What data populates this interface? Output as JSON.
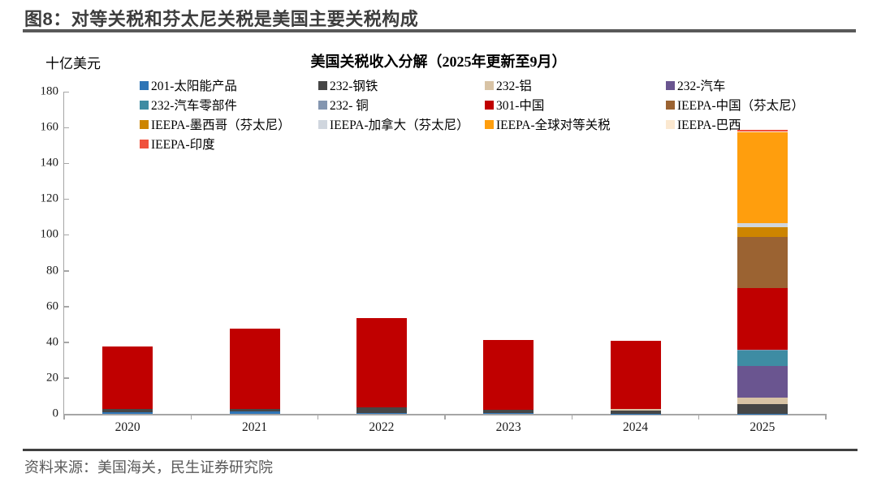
{
  "page": {
    "figure_title": "图8：对等关税和芬太尼关税是美国主要关税构成",
    "source_note": "资料来源：美国海关，民生证券研究院"
  },
  "chart_data": {
    "type": "bar",
    "stacked": true,
    "title": "美国关税收入分解（2025年更新至9月）",
    "ylabel": "十亿美元",
    "xlabel": "",
    "categories": [
      "2020",
      "2021",
      "2022",
      "2023",
      "2024",
      "2025"
    ],
    "ylim": [
      0,
      180
    ],
    "ytick_step": 20,
    "grid": false,
    "legend_position": "top",
    "series": [
      {
        "name": "201-太阳能产品",
        "color": "#2E75B6",
        "values": [
          1.0,
          1.2,
          0.5,
          0.3,
          0.2,
          0.2
        ]
      },
      {
        "name": "232-钢铁",
        "color": "#464646",
        "values": [
          1.7,
          1.6,
          3.0,
          2.0,
          1.8,
          5.2
        ]
      },
      {
        "name": "232-铝",
        "color": "#D8C3A5",
        "values": [
          0,
          0,
          0,
          0,
          0.6,
          3.6
        ]
      },
      {
        "name": "232-汽车",
        "color": "#6A5590",
        "values": [
          0,
          0,
          0,
          0,
          0,
          17.8
        ]
      },
      {
        "name": "232-汽车零部件",
        "color": "#3E8CA3",
        "values": [
          0,
          0,
          0,
          0,
          0,
          8.5
        ]
      },
      {
        "name": "232- 铜",
        "color": "#8496B0",
        "values": [
          0,
          0,
          0,
          0,
          0,
          0.4
        ]
      },
      {
        "name": "301-中国",
        "color": "#C00000",
        "values": [
          34.9,
          44.9,
          50.0,
          39.0,
          38.2,
          34.6
        ]
      },
      {
        "name": "IEEPA-中国（芬太尼）",
        "color": "#9B6332",
        "values": [
          0,
          0,
          0,
          0,
          0,
          28.7
        ]
      },
      {
        "name": "IEEPA-墨西哥（芬太尼）",
        "color": "#CD8500",
        "values": [
          0,
          0,
          0,
          0,
          0,
          5.4
        ]
      },
      {
        "name": "IEEPA-加拿大（芬太尼）",
        "color": "#D0D6DE",
        "values": [
          0,
          0,
          0,
          0,
          0,
          2.3
        ]
      },
      {
        "name": "IEEPA-全球对等关税",
        "color": "#FF9E0D",
        "values": [
          0,
          0,
          0,
          0,
          0,
          50.5
        ]
      },
      {
        "name": "IEEPA-巴西",
        "color": "#FBE8D0",
        "values": [
          0,
          0,
          0,
          0,
          0,
          0.4
        ]
      },
      {
        "name": "IEEPA-印度",
        "color": "#F0513C",
        "values": [
          0,
          0,
          0,
          0,
          0,
          0.9
        ]
      }
    ],
    "totals": [
      37.6,
      47.7,
      53.5,
      41.3,
      40.8,
      158.5
    ],
    "y_tick_labels": [
      "0",
      "20",
      "40",
      "60",
      "80",
      "100",
      "120",
      "140",
      "160",
      "180"
    ]
  },
  "colors": {
    "axis": "#A6A6A6",
    "title_rule": "#595959",
    "footer_rule": "#404040",
    "source_text": "#595959"
  }
}
